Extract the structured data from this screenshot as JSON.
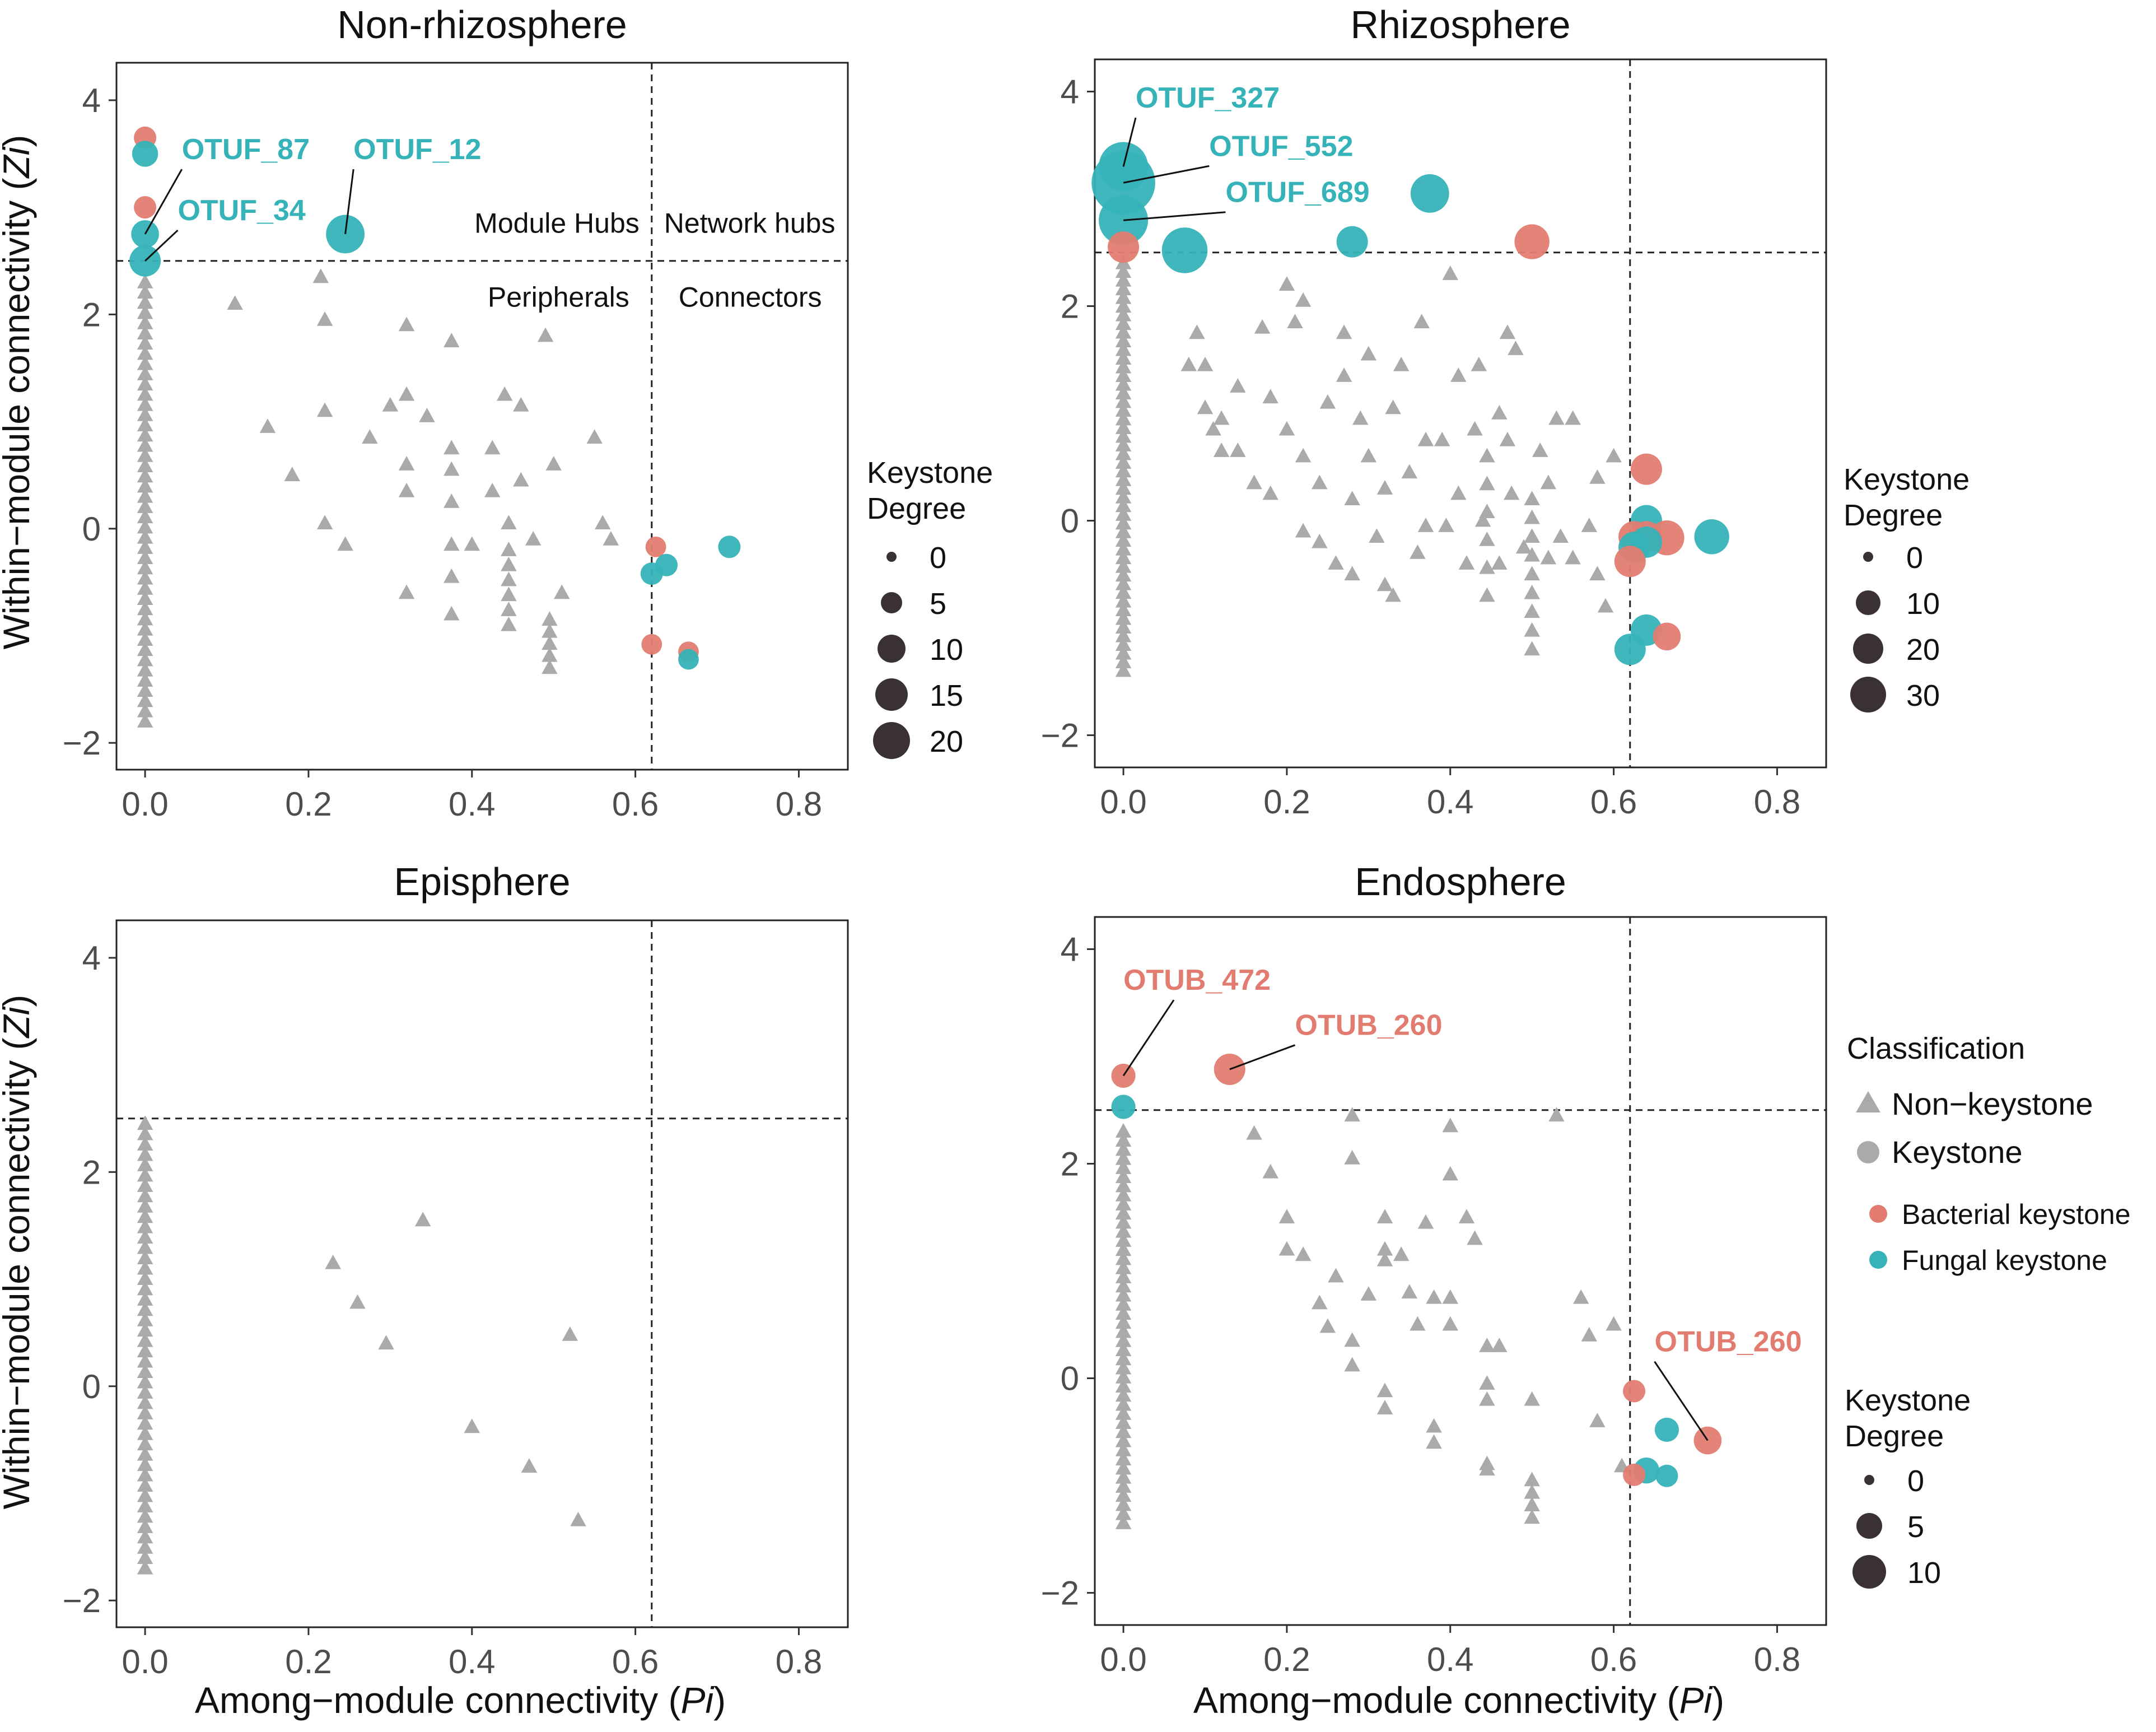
{
  "colors": {
    "bacterial": "#E37C70",
    "fungal": "#35B3B8",
    "nonkeystone": "#AAAAAA",
    "legend_dark": "#3a3232",
    "label_line": "#111111"
  },
  "axis_titles": {
    "x": "Among−module connectivity (",
    "x_italic": "Pi",
    "x_close": ")",
    "y": "Within−module connectivity (",
    "y_italic": "Zi",
    "y_close": ")"
  },
  "legends": {
    "nonrhizo_degree": {
      "title1": "Keystone",
      "title2": "Degree",
      "items": [
        "0",
        "5",
        "10",
        "15",
        "20"
      ]
    },
    "rhizo_degree": {
      "title1": "Keystone",
      "title2": "Degree",
      "items": [
        "0",
        "10",
        "20",
        "30"
      ]
    },
    "endo_degree": {
      "title1": "Keystone",
      "title2": "Degree",
      "items": [
        "0",
        "5",
        "10"
      ]
    },
    "classification": {
      "title": "Classification",
      "non_keystone": "Non−keystone",
      "keystone": "Keystone",
      "bacterial": "Bacterial keystone",
      "fungal": "Fungal keystone"
    }
  },
  "chart_data": [
    {
      "id": "nonrhizo",
      "type": "scatter",
      "title": "Non-rhizosphere",
      "xlabel": "Among-module connectivity (Pi)",
      "ylabel": "Within-module connectivity (Zi)",
      "xlim": [
        -0.035,
        0.86
      ],
      "ylim": [
        -2.25,
        4.35
      ],
      "xticks": [
        "0.0",
        "0.2",
        "0.4",
        "0.6",
        "0.8"
      ],
      "yticks": [
        "−2",
        "0",
        "2",
        "4"
      ],
      "thresholds": {
        "pi": 0.62,
        "zi": 2.5
      },
      "quadrant_labels": {
        "module_hubs": "Module Hubs",
        "network_hubs": "Network hubs",
        "peripherals": "Peripherals",
        "connectors": "Connectors"
      },
      "keystones": [
        {
          "pi": 0.0,
          "zi": 3.65,
          "class": "bacterial",
          "degree": 5
        },
        {
          "pi": 0.0,
          "zi": 3.5,
          "class": "fungal",
          "degree": 7
        },
        {
          "pi": 0.0,
          "zi": 3.0,
          "class": "bacterial",
          "degree": 5
        },
        {
          "pi": 0.0,
          "zi": 2.75,
          "class": "fungal",
          "degree": 8
        },
        {
          "pi": 0.0,
          "zi": 2.5,
          "class": "fungal",
          "degree": 10
        },
        {
          "pi": 0.245,
          "zi": 2.75,
          "class": "fungal",
          "degree": 14
        },
        {
          "pi": 0.625,
          "zi": -0.17,
          "class": "bacterial",
          "degree": 4
        },
        {
          "pi": 0.62,
          "zi": -0.42,
          "class": "fungal",
          "degree": 5
        },
        {
          "pi": 0.638,
          "zi": -0.34,
          "class": "fungal",
          "degree": 5
        },
        {
          "pi": 0.715,
          "zi": -0.17,
          "class": "fungal",
          "degree": 5
        },
        {
          "pi": 0.62,
          "zi": -1.08,
          "class": "bacterial",
          "degree": 4
        },
        {
          "pi": 0.665,
          "zi": -1.15,
          "class": "bacterial",
          "degree": 4
        },
        {
          "pi": 0.665,
          "zi": -1.22,
          "class": "fungal",
          "degree": 4
        }
      ],
      "labels": [
        {
          "text": "OTUF_87",
          "class": "fungal",
          "pi": 0.045,
          "zi": 3.45,
          "to_pi": 0.0,
          "to_zi": 2.75
        },
        {
          "text": "OTUF_34",
          "class": "fungal",
          "pi": 0.04,
          "zi": 2.88,
          "to_pi": 0.0,
          "to_zi": 2.5
        },
        {
          "text": "OTUF_12",
          "class": "fungal",
          "pi": 0.255,
          "zi": 3.45,
          "to_pi": 0.245,
          "to_zi": 2.75
        }
      ],
      "nonkeystone_columns": [
        {
          "pi": 0.0,
          "zi_from": -1.8,
          "zi_to": 2.3,
          "n": 44
        },
        {
          "pi": 0.445,
          "zi_from": -0.9,
          "zi_to": -0.2,
          "n": 6
        },
        {
          "pi": 0.495,
          "zi_from": -1.3,
          "zi_to": -0.85,
          "n": 5
        }
      ],
      "nonkeystone": [
        [
          0.11,
          2.1
        ],
        [
          0.215,
          2.35
        ],
        [
          0.22,
          1.95
        ],
        [
          0.22,
          1.1
        ],
        [
          0.15,
          0.95
        ],
        [
          0.18,
          0.5
        ],
        [
          0.22,
          0.05
        ],
        [
          0.245,
          -0.15
        ],
        [
          0.275,
          0.85
        ],
        [
          0.3,
          1.15
        ],
        [
          0.32,
          1.9
        ],
        [
          0.32,
          1.25
        ],
        [
          0.32,
          0.6
        ],
        [
          0.32,
          0.35
        ],
        [
          0.32,
          -0.6
        ],
        [
          0.345,
          1.05
        ],
        [
          0.375,
          0.25
        ],
        [
          0.375,
          0.75
        ],
        [
          0.375,
          1.75
        ],
        [
          0.375,
          0.55
        ],
        [
          0.375,
          -0.15
        ],
        [
          0.375,
          -0.45
        ],
        [
          0.375,
          -0.8
        ],
        [
          0.4,
          -0.15
        ],
        [
          0.425,
          0.75
        ],
        [
          0.425,
          0.35
        ],
        [
          0.44,
          1.25
        ],
        [
          0.445,
          0.05
        ],
        [
          0.46,
          1.15
        ],
        [
          0.46,
          0.45
        ],
        [
          0.475,
          -0.1
        ],
        [
          0.49,
          1.8
        ],
        [
          0.5,
          0.6
        ],
        [
          0.55,
          0.85
        ],
        [
          0.56,
          0.05
        ],
        [
          0.57,
          -0.1
        ],
        [
          0.51,
          -0.6
        ]
      ]
    },
    {
      "id": "rhizo",
      "type": "scatter",
      "title": "Rhizosphere",
      "xlabel": "Among-module connectivity (Pi)",
      "ylabel": "Within-module connectivity (Zi)",
      "xlim": [
        -0.035,
        0.86
      ],
      "ylim": [
        -2.3,
        4.3
      ],
      "xticks": [
        "0.0",
        "0.2",
        "0.4",
        "0.6",
        "0.8"
      ],
      "yticks": [
        "−2",
        "0",
        "2",
        "4"
      ],
      "thresholds": {
        "pi": 0.62,
        "zi": 2.5
      },
      "keystones": [
        {
          "pi": 0.0,
          "zi": 3.3,
          "class": "fungal",
          "degree": 20
        },
        {
          "pi": 0.0,
          "zi": 3.15,
          "class": "fungal",
          "degree": 28
        },
        {
          "pi": 0.0,
          "zi": 2.8,
          "class": "fungal",
          "degree": 20
        },
        {
          "pi": 0.0,
          "zi": 2.55,
          "class": "bacterial",
          "degree": 10
        },
        {
          "pi": 0.075,
          "zi": 2.52,
          "class": "fungal",
          "degree": 18
        },
        {
          "pi": 0.28,
          "zi": 2.6,
          "class": "fungal",
          "degree": 10
        },
        {
          "pi": 0.375,
          "zi": 3.05,
          "class": "fungal",
          "degree": 14
        },
        {
          "pi": 0.5,
          "zi": 2.6,
          "class": "bacterial",
          "degree": 12
        },
        {
          "pi": 0.64,
          "zi": 0.48,
          "class": "bacterial",
          "degree": 10
        },
        {
          "pi": 0.64,
          "zi": 0.0,
          "class": "fungal",
          "degree": 10
        },
        {
          "pi": 0.625,
          "zi": -0.15,
          "class": "bacterial",
          "degree": 10
        },
        {
          "pi": 0.64,
          "zi": -0.15,
          "class": "bacterial",
          "degree": 10
        },
        {
          "pi": 0.665,
          "zi": -0.16,
          "class": "bacterial",
          "degree": 12
        },
        {
          "pi": 0.72,
          "zi": -0.15,
          "class": "fungal",
          "degree": 12
        },
        {
          "pi": 0.625,
          "zi": -0.25,
          "class": "fungal",
          "degree": 10
        },
        {
          "pi": 0.64,
          "zi": -0.2,
          "class": "fungal",
          "degree": 10
        },
        {
          "pi": 0.62,
          "zi": -0.38,
          "class": "bacterial",
          "degree": 10
        },
        {
          "pi": 0.64,
          "zi": -1.02,
          "class": "fungal",
          "degree": 10
        },
        {
          "pi": 0.665,
          "zi": -1.08,
          "class": "bacterial",
          "degree": 8
        },
        {
          "pi": 0.62,
          "zi": -1.2,
          "class": "fungal",
          "degree": 10
        }
      ],
      "labels": [
        {
          "text": "OTUF_327",
          "class": "fungal",
          "pi": 0.015,
          "zi": 3.85,
          "to_pi": 0.0,
          "to_zi": 3.3
        },
        {
          "text": "OTUF_552",
          "class": "fungal",
          "pi": 0.105,
          "zi": 3.4,
          "to_pi": 0.0,
          "to_zi": 3.15
        },
        {
          "text": "OTUF_689",
          "class": "fungal",
          "pi": 0.125,
          "zi": 2.97,
          "to_pi": 0.0,
          "to_zi": 2.8
        }
      ],
      "nonkeystone_columns": [
        {
          "pi": 0.0,
          "zi_from": -1.4,
          "zi_to": 2.4,
          "n": 48
        },
        {
          "pi": 0.445,
          "zi_from": -0.7,
          "zi_to": 0.6,
          "n": 6
        },
        {
          "pi": 0.5,
          "zi_from": -1.2,
          "zi_to": 0.2,
          "n": 9
        }
      ],
      "nonkeystone": [
        [
          0.09,
          1.75
        ],
        [
          0.1,
          1.45
        ],
        [
          0.08,
          1.45
        ],
        [
          0.1,
          1.05
        ],
        [
          0.11,
          0.85
        ],
        [
          0.12,
          0.65
        ],
        [
          0.12,
          0.95
        ],
        [
          0.14,
          0.65
        ],
        [
          0.14,
          1.25
        ],
        [
          0.16,
          0.35
        ],
        [
          0.18,
          0.25
        ],
        [
          0.17,
          1.8
        ],
        [
          0.18,
          1.15
        ],
        [
          0.2,
          2.2
        ],
        [
          0.22,
          2.05
        ],
        [
          0.21,
          1.85
        ],
        [
          0.2,
          0.85
        ],
        [
          0.22,
          0.6
        ],
        [
          0.22,
          -0.1
        ],
        [
          0.24,
          -0.2
        ],
        [
          0.24,
          0.35
        ],
        [
          0.25,
          1.1
        ],
        [
          0.26,
          -0.4
        ],
        [
          0.27,
          1.75
        ],
        [
          0.27,
          1.35
        ],
        [
          0.28,
          0.2
        ],
        [
          0.28,
          -0.5
        ],
        [
          0.29,
          0.95
        ],
        [
          0.3,
          1.55
        ],
        [
          0.3,
          0.6
        ],
        [
          0.31,
          -0.15
        ],
        [
          0.32,
          0.3
        ],
        [
          0.32,
          -0.6
        ],
        [
          0.33,
          1.05
        ],
        [
          0.33,
          -0.7
        ],
        [
          0.34,
          1.45
        ],
        [
          0.35,
          0.45
        ],
        [
          0.36,
          -0.3
        ],
        [
          0.365,
          1.85
        ],
        [
          0.37,
          0.75
        ],
        [
          0.37,
          -0.05
        ],
        [
          0.39,
          0.75
        ],
        [
          0.395,
          -0.05
        ],
        [
          0.4,
          2.3
        ],
        [
          0.41,
          1.35
        ],
        [
          0.41,
          0.25
        ],
        [
          0.42,
          -0.4
        ],
        [
          0.43,
          0.85
        ],
        [
          0.435,
          1.45
        ],
        [
          0.44,
          0.0
        ],
        [
          0.46,
          1.0
        ],
        [
          0.46,
          -0.4
        ],
        [
          0.47,
          1.75
        ],
        [
          0.47,
          0.75
        ],
        [
          0.475,
          0.25
        ],
        [
          0.48,
          1.6
        ],
        [
          0.49,
          -0.25
        ],
        [
          0.51,
          0.65
        ],
        [
          0.52,
          0.35
        ],
        [
          0.52,
          -0.35
        ],
        [
          0.53,
          0.95
        ],
        [
          0.535,
          -0.15
        ],
        [
          0.55,
          -0.35
        ],
        [
          0.55,
          0.95
        ],
        [
          0.57,
          -0.05
        ],
        [
          0.58,
          -0.5
        ],
        [
          0.59,
          -0.8
        ],
        [
          0.6,
          0.6
        ],
        [
          0.58,
          0.4
        ]
      ]
    },
    {
      "id": "epi",
      "type": "scatter",
      "title": "Episphere",
      "xlabel": "Among-module connectivity (Pi)",
      "ylabel": "Within-module connectivity (Zi)",
      "xlim": [
        -0.035,
        0.86
      ],
      "ylim": [
        -2.25,
        4.35
      ],
      "xticks": [
        "0.0",
        "0.2",
        "0.4",
        "0.6",
        "0.8"
      ],
      "yticks": [
        "−2",
        "0",
        "2",
        "4"
      ],
      "thresholds": {
        "pi": 0.62,
        "zi": 2.5
      },
      "keystones": [],
      "labels": [],
      "nonkeystone_columns": [
        {
          "pi": 0.0,
          "zi_from": -1.7,
          "zi_to": 2.45,
          "n": 44
        }
      ],
      "nonkeystone": [
        [
          0.23,
          1.15
        ],
        [
          0.26,
          0.78
        ],
        [
          0.295,
          0.4
        ],
        [
          0.34,
          1.55
        ],
        [
          0.4,
          -0.38
        ],
        [
          0.47,
          -0.75
        ],
        [
          0.52,
          0.48
        ],
        [
          0.53,
          -1.25
        ]
      ]
    },
    {
      "id": "endo",
      "type": "scatter",
      "title": "Endosphere",
      "xlabel": "Among-module connectivity (Pi)",
      "ylabel": "Within-module connectivity (Zi)",
      "xlim": [
        -0.035,
        0.86
      ],
      "ylim": [
        -2.3,
        4.3
      ],
      "xticks": [
        "0.0",
        "0.2",
        "0.4",
        "0.6",
        "0.8"
      ],
      "yticks": [
        "−2",
        "0",
        "2",
        "4"
      ],
      "thresholds": {
        "pi": 0.62,
        "zi": 2.5
      },
      "keystones": [
        {
          "pi": 0.0,
          "zi": 2.82,
          "class": "bacterial",
          "degree": 6
        },
        {
          "pi": 0.0,
          "zi": 2.53,
          "class": "fungal",
          "degree": 6
        },
        {
          "pi": 0.13,
          "zi": 2.88,
          "class": "bacterial",
          "degree": 10
        },
        {
          "pi": 0.625,
          "zi": -0.12,
          "class": "bacterial",
          "degree": 5
        },
        {
          "pi": 0.665,
          "zi": -0.48,
          "class": "fungal",
          "degree": 6
        },
        {
          "pi": 0.715,
          "zi": -0.58,
          "class": "bacterial",
          "degree": 8
        },
        {
          "pi": 0.64,
          "zi": -0.86,
          "class": "fungal",
          "degree": 7
        },
        {
          "pi": 0.665,
          "zi": -0.91,
          "class": "fungal",
          "degree": 5
        },
        {
          "pi": 0.625,
          "zi": -0.9,
          "class": "bacterial",
          "degree": 5
        }
      ],
      "labels": [
        {
          "text": "OTUB_472",
          "class": "bacterial",
          "pi": 0.0,
          "zi": 3.62,
          "to_pi": 0.0,
          "to_zi": 2.82
        },
        {
          "text": "OTUB_260",
          "class": "bacterial",
          "pi": 0.21,
          "zi": 3.2,
          "to_pi": 0.13,
          "to_zi": 2.88
        },
        {
          "text": "OTUB_260",
          "class": "bacterial",
          "pi": 0.65,
          "zi": 0.25,
          "to_pi": 0.715,
          "to_zi": -0.58
        }
      ],
      "nonkeystone_columns": [
        {
          "pi": 0.0,
          "zi_from": -1.35,
          "zi_to": 2.3,
          "n": 44
        },
        {
          "pi": 0.5,
          "zi_from": -1.3,
          "zi_to": -0.95,
          "n": 4
        }
      ],
      "nonkeystone": [
        [
          0.16,
          2.28
        ],
        [
          0.18,
          1.92
        ],
        [
          0.2,
          1.5
        ],
        [
          0.2,
          1.2
        ],
        [
          0.22,
          1.15
        ],
        [
          0.24,
          0.7
        ],
        [
          0.25,
          0.48
        ],
        [
          0.26,
          0.95
        ],
        [
          0.28,
          2.45
        ],
        [
          0.28,
          2.05
        ],
        [
          0.28,
          0.35
        ],
        [
          0.28,
          0.12
        ],
        [
          0.3,
          0.78
        ],
        [
          0.32,
          1.5
        ],
        [
          0.32,
          1.2
        ],
        [
          0.32,
          1.1
        ],
        [
          0.32,
          -0.12
        ],
        [
          0.32,
          -0.28
        ],
        [
          0.34,
          1.15
        ],
        [
          0.35,
          0.8
        ],
        [
          0.36,
          0.5
        ],
        [
          0.37,
          1.45
        ],
        [
          0.38,
          0.75
        ],
        [
          0.38,
          -0.6
        ],
        [
          0.38,
          -0.45
        ],
        [
          0.4,
          2.35
        ],
        [
          0.4,
          1.9
        ],
        [
          0.4,
          0.75
        ],
        [
          0.4,
          0.5
        ],
        [
          0.42,
          1.5
        ],
        [
          0.43,
          1.3
        ],
        [
          0.445,
          0.3
        ],
        [
          0.445,
          -0.05
        ],
        [
          0.445,
          -0.2
        ],
        [
          0.445,
          -0.8
        ],
        [
          0.445,
          -0.85
        ],
        [
          0.46,
          0.3
        ],
        [
          0.5,
          -0.2
        ],
        [
          0.53,
          2.45
        ],
        [
          0.56,
          0.75
        ],
        [
          0.57,
          0.4
        ],
        [
          0.58,
          -0.4
        ],
        [
          0.6,
          0.5
        ],
        [
          0.61,
          -0.82
        ]
      ]
    }
  ]
}
